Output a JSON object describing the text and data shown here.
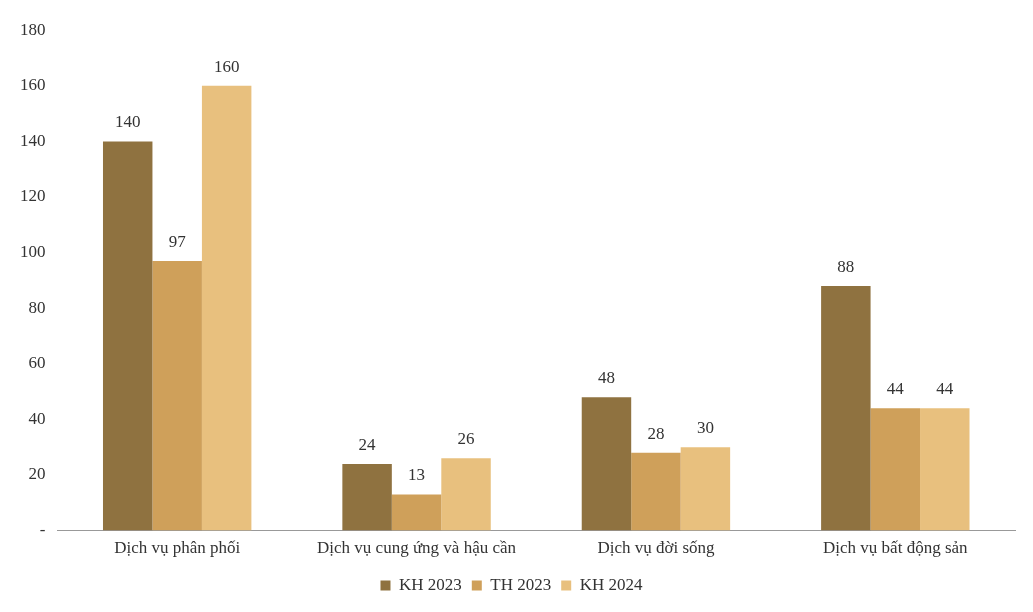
{
  "chart_data": {
    "type": "bar",
    "categories": [
      "Dịch vụ phân phối",
      "Dịch vụ cung ứng và hậu cần",
      "Dịch vụ đời sống",
      "Dịch vụ bất động sản"
    ],
    "series": [
      {
        "name": "KH 2023",
        "color": "#8f7240",
        "values": [
          140,
          24,
          48,
          88
        ]
      },
      {
        "name": "TH 2023",
        "color": "#cfa05a",
        "values": [
          97,
          13,
          28,
          44
        ]
      },
      {
        "name": "KH 2024",
        "color": "#e8c07e",
        "values": [
          160,
          26,
          30,
          44
        ]
      }
    ],
    "ylim": [
      0,
      180
    ],
    "yticks": [
      {
        "value": 0,
        "label": "-"
      },
      20,
      40,
      60,
      80,
      100,
      120,
      140,
      160,
      180
    ],
    "grid": false,
    "legend": "bottom",
    "data_labels": true
  }
}
